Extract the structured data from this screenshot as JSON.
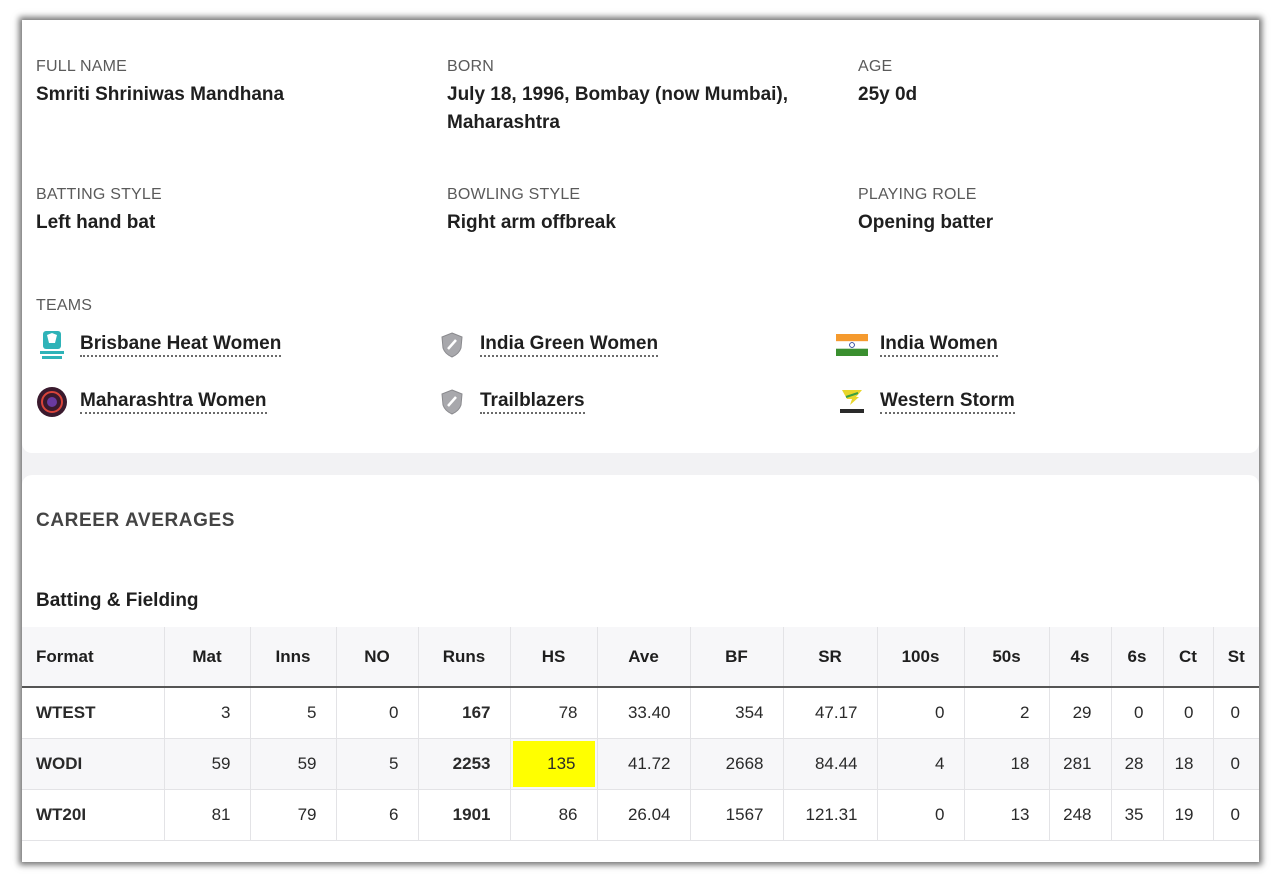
{
  "profile": {
    "full_name_label": "FULL NAME",
    "full_name": "Smriti Shriniwas Mandhana",
    "born_label": "BORN",
    "born_line1": "July 18, 1996, Bombay (now Mumbai),",
    "born_line2": "Maharashtra",
    "age_label": "AGE",
    "age": "25y 0d",
    "batting_style_label": "BATTING STYLE",
    "batting_style": "Left hand bat",
    "bowling_style_label": "BOWLING STYLE",
    "bowling_style": "Right arm offbreak",
    "playing_role_label": "PLAYING ROLE",
    "playing_role": "Opening batter"
  },
  "teams": {
    "label": "TEAMS",
    "items": [
      {
        "name": "Brisbane Heat Women",
        "icon": "brisbane-heat-logo-icon"
      },
      {
        "name": "India Green Women",
        "icon": "shield-icon"
      },
      {
        "name": "India Women",
        "icon": "india-flag-icon"
      },
      {
        "name": "Maharashtra Women",
        "icon": "maharashtra-logo-icon"
      },
      {
        "name": "Trailblazers",
        "icon": "shield-icon"
      },
      {
        "name": "Western Storm",
        "icon": "western-storm-logo-icon"
      }
    ]
  },
  "career": {
    "title": "CAREER AVERAGES",
    "subtitle": "Batting & Fielding",
    "highlight_color": "#ffff00",
    "columns": [
      "Format",
      "Mat",
      "Inns",
      "NO",
      "Runs",
      "HS",
      "Ave",
      "BF",
      "SR",
      "100s",
      "50s",
      "4s",
      "6s",
      "Ct",
      "St"
    ],
    "rows": [
      [
        "WTEST",
        "3",
        "5",
        "0",
        "167",
        "78",
        "33.40",
        "354",
        "47.17",
        "0",
        "2",
        "29",
        "0",
        "0",
        "0"
      ],
      [
        "WODI",
        "59",
        "59",
        "5",
        "2253",
        "135",
        "41.72",
        "2668",
        "84.44",
        "4",
        "18",
        "281",
        "28",
        "18",
        "0"
      ],
      [
        "WT20I",
        "81",
        "79",
        "6",
        "1901",
        "86",
        "26.04",
        "1567",
        "121.31",
        "0",
        "13",
        "248",
        "35",
        "19",
        "0"
      ]
    ]
  }
}
